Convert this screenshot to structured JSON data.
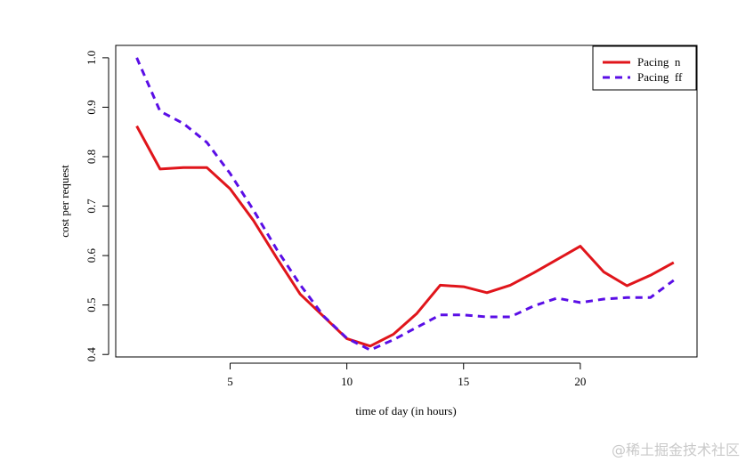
{
  "chart_data": {
    "type": "line",
    "title": "",
    "xlabel": "time of day (in hours)",
    "ylabel": "cost per request",
    "xlim": [
      0.1,
      25
    ],
    "ylim": [
      0.395,
      1.025
    ],
    "x_ticks": [
      5,
      10,
      15,
      20
    ],
    "y_ticks": [
      0.4,
      0.5,
      0.6,
      0.7,
      0.8,
      0.9,
      1.0
    ],
    "y_tick_labels": [
      "0.4",
      "0.5",
      "0.6",
      "0.7",
      "0.8",
      "0.9",
      "1.0"
    ],
    "grid": false,
    "legend_position": "top-right",
    "x": [
      1,
      2,
      3,
      4,
      5,
      6,
      7,
      8,
      9,
      10,
      11,
      12,
      13,
      14,
      15,
      16,
      17,
      18,
      19,
      20,
      21,
      22,
      23,
      24
    ],
    "series": [
      {
        "name": "Pacing  n",
        "color": "#e0151b",
        "line_style": "solid",
        "values": [
          0.862,
          0.775,
          0.778,
          0.778,
          0.735,
          0.671,
          0.595,
          0.522,
          0.477,
          0.432,
          0.417,
          0.441,
          0.483,
          0.54,
          0.537,
          0.525,
          0.54,
          0.565,
          0.592,
          0.619,
          0.567,
          0.539,
          0.56,
          0.586
        ]
      },
      {
        "name": "Pacing  ff",
        "color": "#5a0ee6",
        "line_style": "dashed",
        "values": [
          1.0,
          0.892,
          0.867,
          0.829,
          0.766,
          0.692,
          0.612,
          0.541,
          0.478,
          0.433,
          0.409,
          0.43,
          0.455,
          0.48,
          0.48,
          0.476,
          0.476,
          0.498,
          0.514,
          0.505,
          0.512,
          0.515,
          0.515,
          0.55
        ]
      }
    ]
  },
  "watermark": "@稀土掘金技术社区"
}
